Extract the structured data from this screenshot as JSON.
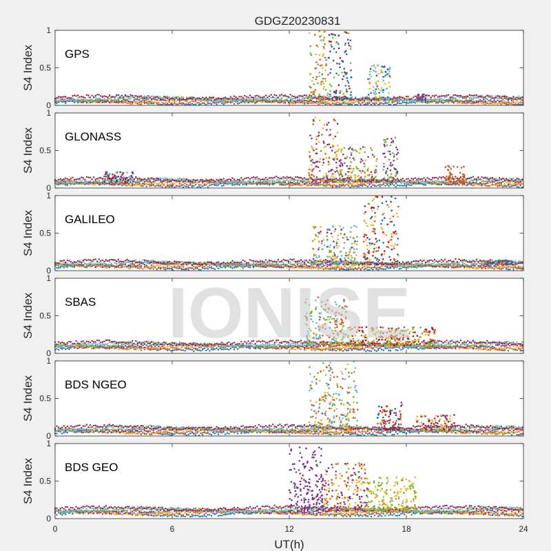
{
  "figure": {
    "title": "GDGZ20230831",
    "xlabel": "UT(h)",
    "watermark": "IONISE",
    "background": "#f0f0f0"
  },
  "chart_data": {
    "type": "scatter",
    "title": "GDGZ20230831",
    "xlabel": "UT(h)",
    "ylabel": "S4 Index",
    "xlim": [
      0,
      24
    ],
    "ylim": [
      0,
      1
    ],
    "xticks": [
      0,
      6,
      12,
      18,
      24
    ],
    "yticks": [
      0,
      0.5,
      1
    ],
    "ytick_labels": [
      "0",
      "0.5",
      "1"
    ],
    "grid": false,
    "panels": [
      {
        "name": "GPS",
        "baseline": 0.07,
        "events": [
          {
            "t": [
              13.0,
              14.0
            ],
            "max": 1.0,
            "colors": [
              "#d95319",
              "#77ac30",
              "#edb120"
            ]
          },
          {
            "t": [
              14.0,
              15.2
            ],
            "max": 1.0,
            "colors": [
              "#a2142f",
              "#7e2f8e",
              "#77ac30",
              "#0072bd"
            ]
          },
          {
            "t": [
              16.0,
              17.2
            ],
            "max": 0.55,
            "colors": [
              "#edb120",
              "#4dbeee",
              "#0072bd"
            ]
          },
          {
            "t": [
              18.5,
              19.0
            ],
            "max": 0.15,
            "colors": [
              "#0072bd",
              "#7e2f8e"
            ]
          }
        ]
      },
      {
        "name": "GLONASS",
        "baseline": 0.08,
        "events": [
          {
            "t": [
              2.5,
              4.0
            ],
            "max": 0.22,
            "colors": [
              "#4dbeee",
              "#a2142f"
            ]
          },
          {
            "t": [
              13.0,
              14.5
            ],
            "max": 1.0,
            "colors": [
              "#edb120",
              "#d95319",
              "#7e2f8e"
            ]
          },
          {
            "t": [
              14.5,
              16.5
            ],
            "max": 0.55,
            "colors": [
              "#7e2f8e",
              "#edb120",
              "#77ac30"
            ]
          },
          {
            "t": [
              16.8,
              17.6
            ],
            "max": 0.68,
            "colors": [
              "#77ac30",
              "#7e2f8e"
            ]
          },
          {
            "t": [
              20.0,
              21.0
            ],
            "max": 0.3,
            "colors": [
              "#d95319"
            ]
          }
        ]
      },
      {
        "name": "GALILEO",
        "baseline": 0.08,
        "events": [
          {
            "t": [
              13.2,
              15.5
            ],
            "max": 0.6,
            "colors": [
              "#edb120",
              "#77ac30",
              "#4dbeee",
              "#7e2f8e"
            ]
          },
          {
            "t": [
              15.8,
              17.6
            ],
            "max": 1.0,
            "colors": [
              "#d95319",
              "#0072bd",
              "#a2142f",
              "#edb120"
            ]
          },
          {
            "t": [
              22.0,
              23.5
            ],
            "max": 0.15,
            "colors": [
              "#d95319",
              "#0072bd"
            ]
          }
        ]
      },
      {
        "name": "SBAS",
        "baseline": 0.1,
        "events": [
          {
            "t": [
              12.8,
              15.0
            ],
            "max": 0.75,
            "colors": [
              "#d95319",
              "#edb120",
              "#4dbeee",
              "#77ac30"
            ]
          },
          {
            "t": [
              15.0,
              19.5
            ],
            "max": 0.35,
            "colors": [
              "#77ac30",
              "#a2142f",
              "#edb120",
              "#d95319"
            ]
          }
        ]
      },
      {
        "name": "BDS NGEO",
        "baseline": 0.08,
        "events": [
          {
            "t": [
              13.0,
              15.5
            ],
            "max": 1.0,
            "colors": [
              "#4dbeee",
              "#d95319",
              "#77ac30",
              "#edb120"
            ]
          },
          {
            "t": [
              16.5,
              17.8
            ],
            "max": 0.45,
            "colors": [
              "#a2142f",
              "#d95319",
              "#0072bd"
            ]
          },
          {
            "t": [
              18.5,
              20.5
            ],
            "max": 0.28,
            "colors": [
              "#7e2f8e",
              "#edb120",
              "#a2142f"
            ]
          }
        ]
      },
      {
        "name": "BDS GEO",
        "baseline": 0.1,
        "events": [
          {
            "t": [
              12.0,
              13.8
            ],
            "max": 0.95,
            "colors": [
              "#7e2f8e"
            ]
          },
          {
            "t": [
              13.8,
              16.0
            ],
            "max": 0.75,
            "colors": [
              "#d95319",
              "#edb120",
              "#7e2f8e"
            ]
          },
          {
            "t": [
              16.0,
              18.5
            ],
            "max": 0.55,
            "colors": [
              "#edb120",
              "#77ac30"
            ]
          }
        ]
      }
    ],
    "series_colors": [
      "#0072bd",
      "#d95319",
      "#edb120",
      "#7e2f8e",
      "#77ac30",
      "#4dbeee",
      "#a2142f"
    ]
  }
}
